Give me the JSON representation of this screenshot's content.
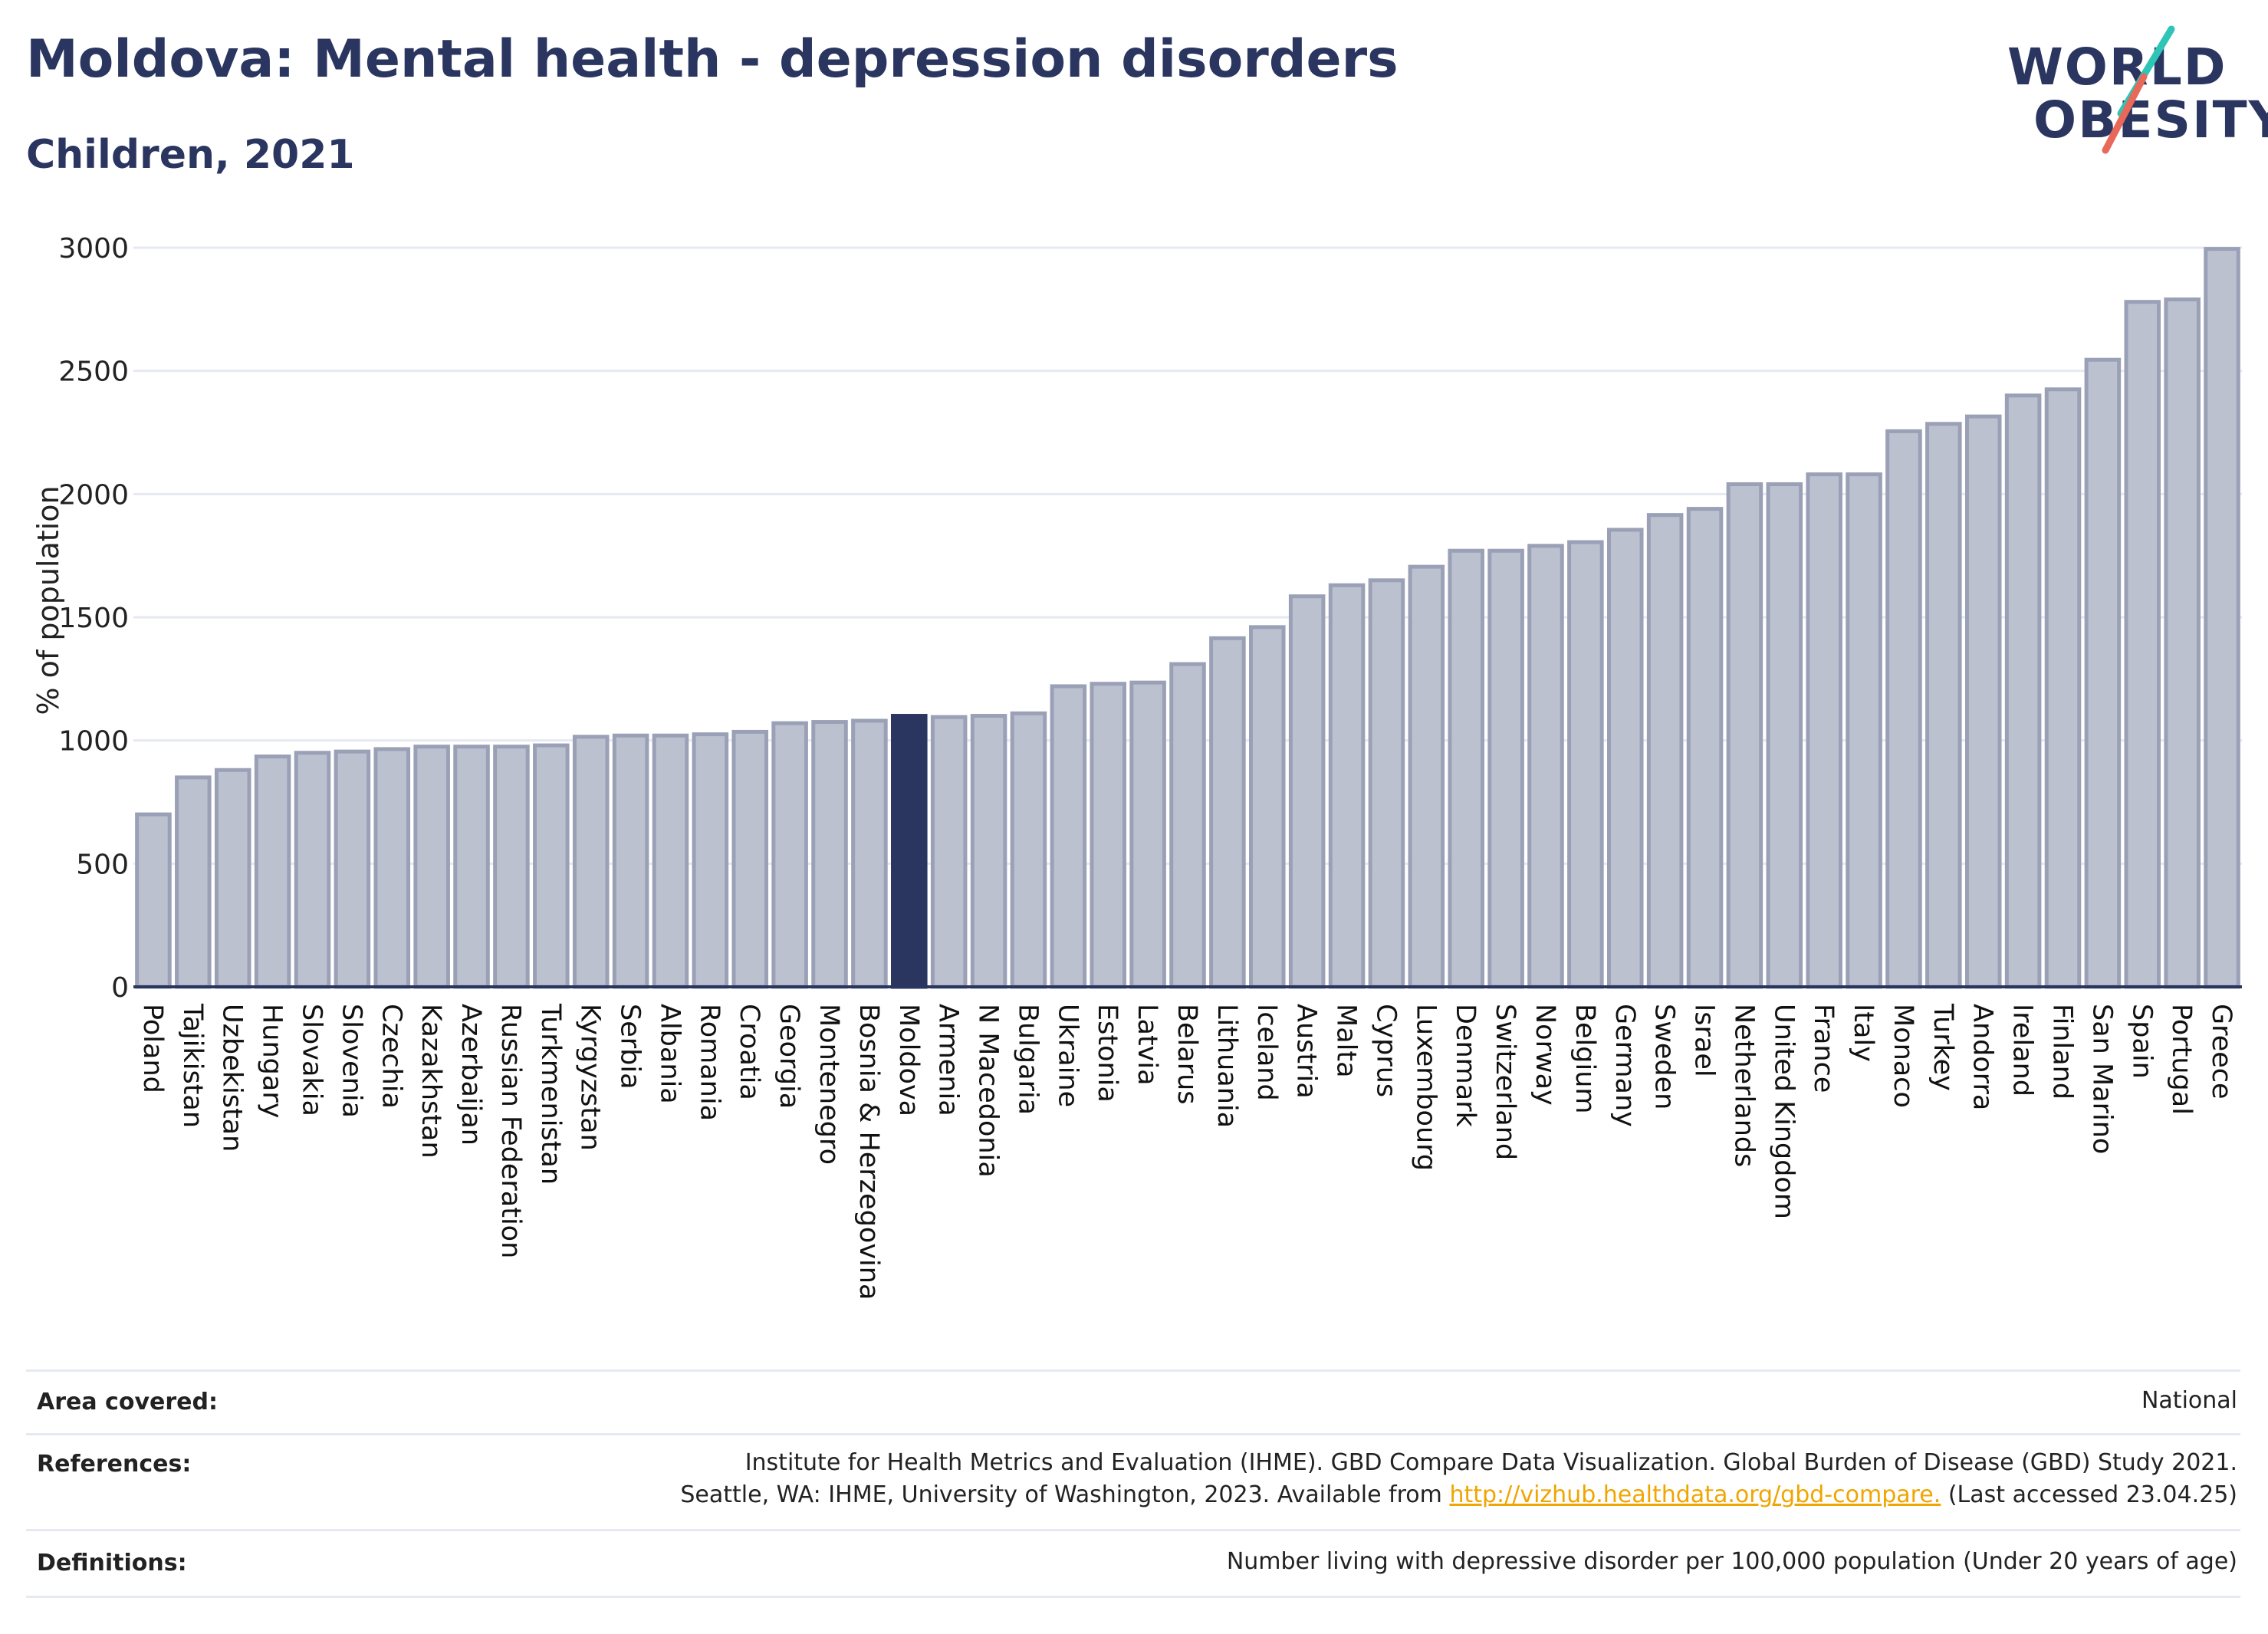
{
  "header": {
    "title": "Moldova: Mental health - depression disorders",
    "subtitle": "Children, 2021"
  },
  "logo": {
    "line1": "WORLD",
    "line2": "OBESITY",
    "accent_teal": "#2ec4b6",
    "accent_coral": "#e8685a"
  },
  "colors": {
    "bar": "#bcc1d0",
    "bar_edge": "#9aa0b6",
    "highlight": "#2a3560",
    "grid": "#e6e9f2",
    "axis": "#2a3560"
  },
  "chart_data": {
    "type": "bar",
    "ylabel": "% of population",
    "ylim": [
      0,
      3000
    ],
    "yticks": [
      0,
      500,
      1000,
      1500,
      2000,
      2500,
      3000
    ],
    "highlight": "Moldova",
    "categories": [
      "Poland",
      "Tajikistan",
      "Uzbekistan",
      "Hungary",
      "Slovakia",
      "Slovenia",
      "Czechia",
      "Kazakhstan",
      "Azerbaijan",
      "Russian Federation",
      "Turkmenistan",
      "Kyrgyzstan",
      "Serbia",
      "Albania",
      "Romania",
      "Croatia",
      "Georgia",
      "Montenegro",
      "Bosnia & Herzegovina",
      "Moldova",
      "Armenia",
      "N Macedonia",
      "Bulgaria",
      "Ukraine",
      "Estonia",
      "Latvia",
      "Belarus",
      "Lithuania",
      "Iceland",
      "Austria",
      "Malta",
      "Cyprus",
      "Luxembourg",
      "Denmark",
      "Switzerland",
      "Norway",
      "Belgium",
      "Germany",
      "Sweden",
      "Israel",
      "Netherlands",
      "United Kingdom",
      "France",
      "Italy",
      "Monaco",
      "Turkey",
      "Andorra",
      "Ireland",
      "Finland",
      "San Marino",
      "Spain",
      "Portugal",
      "Greece"
    ],
    "values": [
      700,
      850,
      880,
      935,
      950,
      955,
      965,
      975,
      975,
      975,
      980,
      1015,
      1020,
      1020,
      1025,
      1035,
      1070,
      1075,
      1080,
      1100,
      1095,
      1100,
      1110,
      1220,
      1230,
      1235,
      1310,
      1415,
      1460,
      1585,
      1630,
      1650,
      1705,
      1770,
      1770,
      1790,
      1805,
      1855,
      1915,
      1940,
      2040,
      2040,
      2080,
      2080,
      2255,
      2285,
      2315,
      2400,
      2425,
      2545,
      2780,
      2790,
      2995
    ]
  },
  "info": {
    "area_label": "Area covered:",
    "area_value": "National",
    "references_label": "References:",
    "references_line1": "Institute for Health Metrics and Evaluation (IHME). GBD Compare Data Visualization. Global Burden of Disease (GBD) Study 2021.",
    "references_line2_pre": "Seattle, WA: IHME, University of Washington, 2023. Available from",
    "references_link": "http://vizhub.healthdata.org/gbd-compare.",
    "references_line2_post": "(Last accessed 23.04.25)",
    "definitions_label": "Definitions:",
    "definitions_value": "Number living with depressive disorder per 100,000 population (Under 20 years of age)"
  }
}
